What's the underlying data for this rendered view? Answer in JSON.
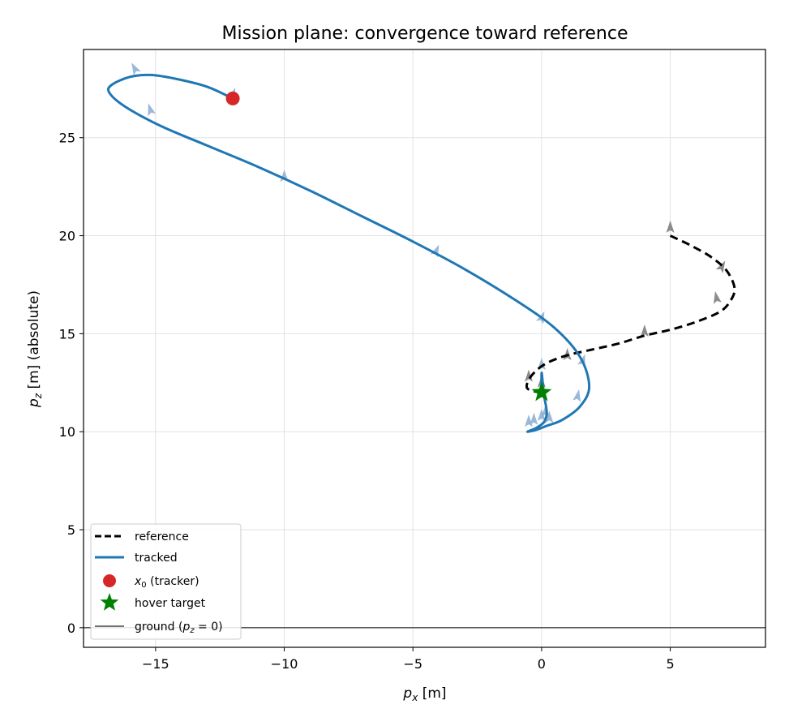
{
  "chart_data": {
    "type": "line",
    "title": "Mission plane: convergence toward reference",
    "xlabel_var": "p",
    "xlabel_sub": "x",
    "xlabel_rest": " [m]",
    "ylabel_var": "p",
    "ylabel_sub": "z",
    "ylabel_rest": " [m] (absolute)",
    "xlim": [
      -17.8,
      8.7
    ],
    "ylim": [
      -1.0,
      29.5
    ],
    "xticks": [
      -15,
      -10,
      -5,
      0,
      5
    ],
    "xtick_labels": [
      "−15",
      "−10",
      "−5",
      "0",
      "5"
    ],
    "yticks": [
      0,
      5,
      10,
      15,
      20,
      25
    ],
    "ytick_labels": [
      "0",
      "5",
      "10",
      "15",
      "20",
      "25"
    ],
    "grid": true,
    "legend_position": "lower-left",
    "colors": {
      "reference": "#000000",
      "tracked": "#1f77b4",
      "start": "#d62728",
      "target": "#008000",
      "ground": "#444444",
      "tracked_arrow": "#8fb0d4",
      "reference_arrow": "#808080"
    },
    "series": [
      {
        "name": "reference",
        "style": "dashed",
        "points": [
          [
            5.0,
            20.0
          ],
          [
            5.8,
            19.5
          ],
          [
            6.6,
            18.9
          ],
          [
            7.2,
            18.2
          ],
          [
            7.5,
            17.3
          ],
          [
            7.3,
            16.6
          ],
          [
            6.9,
            16.1
          ],
          [
            6.0,
            15.6
          ],
          [
            5.0,
            15.2
          ],
          [
            4.0,
            14.9
          ],
          [
            3.0,
            14.5
          ],
          [
            2.0,
            14.2
          ],
          [
            1.0,
            13.9
          ],
          [
            0.2,
            13.5
          ],
          [
            -0.3,
            13.0
          ],
          [
            -0.55,
            12.5
          ],
          [
            -0.55,
            12.2
          ],
          [
            -0.25,
            12.05
          ],
          [
            0.0,
            12.0
          ]
        ]
      },
      {
        "name": "tracked",
        "style": "solid",
        "points": [
          [
            -12.0,
            27.0
          ],
          [
            -13.0,
            27.6
          ],
          [
            -14.2,
            28.0
          ],
          [
            -15.2,
            28.2
          ],
          [
            -16.0,
            28.1
          ],
          [
            -16.7,
            27.7
          ],
          [
            -16.8,
            27.3
          ],
          [
            -16.2,
            26.6
          ],
          [
            -14.8,
            25.6
          ],
          [
            -13.0,
            24.6
          ],
          [
            -11.0,
            23.5
          ],
          [
            -9.0,
            22.3
          ],
          [
            -7.0,
            21.0
          ],
          [
            -5.0,
            19.7
          ],
          [
            -3.0,
            18.3
          ],
          [
            -1.0,
            16.7
          ],
          [
            0.5,
            15.3
          ],
          [
            1.5,
            13.8
          ],
          [
            1.85,
            12.3
          ],
          [
            1.5,
            11.3
          ],
          [
            0.8,
            10.6
          ],
          [
            0.2,
            10.3
          ],
          [
            -0.2,
            10.1
          ],
          [
            -0.55,
            10.0
          ],
          [
            -0.2,
            10.2
          ],
          [
            0.1,
            10.5
          ],
          [
            0.2,
            11.0
          ],
          [
            0.1,
            11.8
          ],
          [
            0.05,
            12.4
          ],
          [
            0.0,
            13.0
          ],
          [
            0.0,
            12.0
          ]
        ]
      }
    ],
    "tracked_attitude_markers": [
      [
        -12.0,
        27.2,
        0.35
      ],
      [
        -15.8,
        28.5,
        -0.5
      ],
      [
        -15.2,
        26.4,
        -0.3
      ],
      [
        -10.0,
        23.0,
        0.0
      ],
      [
        -4.1,
        19.2,
        0.4
      ],
      [
        0.0,
        15.8,
        0.4
      ],
      [
        0.0,
        13.4,
        0.0
      ],
      [
        1.6,
        13.6,
        0.3
      ],
      [
        1.4,
        11.8,
        0.2
      ],
      [
        -0.5,
        10.5,
        0.0
      ],
      [
        -0.3,
        10.6,
        0.0
      ],
      [
        0.0,
        10.8,
        0.0
      ],
      [
        0.3,
        10.7,
        0.0
      ],
      [
        0.15,
        11.0,
        0.0
      ]
    ],
    "reference_attitude_markers": [
      [
        5.0,
        20.4,
        0.0
      ],
      [
        7.0,
        18.4,
        0.5
      ],
      [
        6.8,
        16.8,
        -0.2
      ],
      [
        4.0,
        15.1,
        0.0
      ],
      [
        1.0,
        13.9,
        0.0
      ],
      [
        -0.5,
        12.8,
        0.0
      ],
      [
        0.0,
        12.5,
        0.0
      ]
    ],
    "start_point": {
      "name": "tracker",
      "x": -12.0,
      "y": 27.0
    },
    "hover_target": {
      "name": "hover target",
      "x": 0.0,
      "y": 12.0
    },
    "ground_level": 0,
    "legend": {
      "reference": "reference",
      "tracked": "tracked",
      "start_var": "x",
      "start_sub": "0",
      "start_rest": " (tracker)",
      "target": "hover target",
      "ground_prefix": "ground (",
      "ground_var": "p",
      "ground_sub": "z",
      "ground_eq": " = 0)"
    }
  }
}
